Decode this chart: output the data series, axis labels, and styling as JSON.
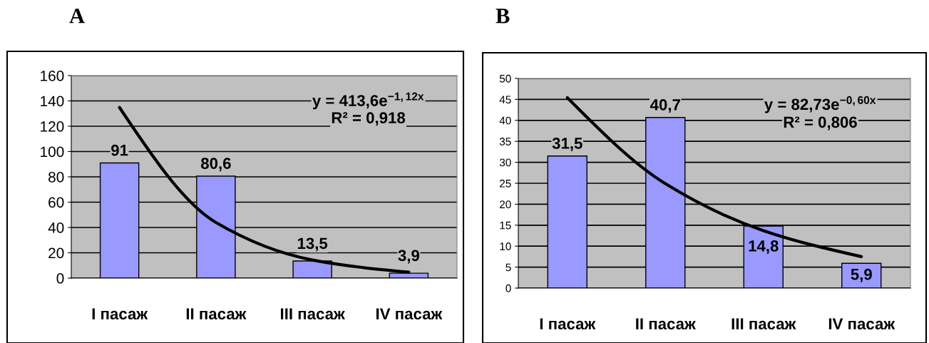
{
  "chart_data": [
    {
      "type": "bar",
      "title": "A",
      "categories": [
        "I пасаж",
        "II пасаж",
        "III пасаж",
        "IV пасаж"
      ],
      "ylim": [
        0,
        160
      ],
      "yticks": [
        0,
        20,
        40,
        60,
        80,
        100,
        120,
        140,
        160
      ],
      "grid": "y",
      "legend": false,
      "series": [
        {
          "type": "bar",
          "color": "#9999ff",
          "values": [
            91,
            80.6,
            13.5,
            3.9
          ],
          "value_labels": [
            "91",
            "80,6",
            "13,5",
            "3,9"
          ]
        },
        {
          "type": "line",
          "color": "#000000",
          "values": [
            134.8,
            43.9,
            14.3,
            4.7
          ]
        }
      ],
      "annotations": [
        "y = 413,6e$^{−1,12x}$",
        "R² = 0,918"
      ]
    },
    {
      "type": "bar",
      "title": "B",
      "categories": [
        "I пасаж",
        "II пасаж",
        "III пасаж",
        "IV пасаж"
      ],
      "ylim": [
        0,
        50
      ],
      "yticks": [
        0,
        5,
        10,
        15,
        20,
        25,
        30,
        35,
        40,
        45,
        50
      ],
      "grid": "y",
      "legend": false,
      "series": [
        {
          "type": "bar",
          "color": "#9999ff",
          "values": [
            31.5,
            40.7,
            14.8,
            5.9
          ],
          "value_labels": [
            "31,5",
            "40,7",
            "14,8",
            "5,9"
          ]
        },
        {
          "type": "line",
          "color": "#000000",
          "values": [
            45.4,
            24.9,
            13.7,
            7.5
          ]
        }
      ],
      "annotations": [
        "y = 82,73e$^{−0,60x}$",
        "R² = 0,806"
      ]
    }
  ]
}
